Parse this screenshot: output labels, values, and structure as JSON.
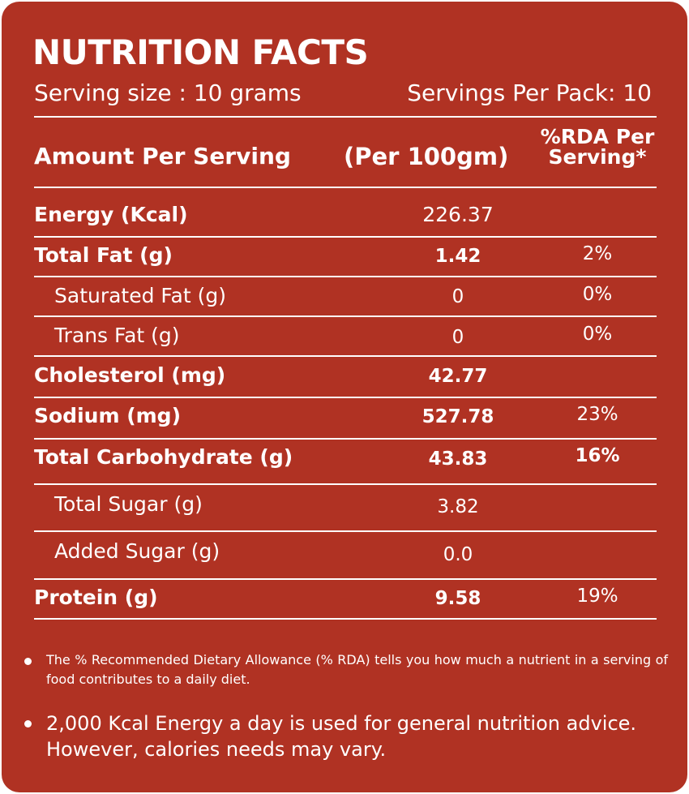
{
  "title": "NUTRITION FACTS",
  "serving_size": "Serving size : 10 grams",
  "servings_per_pack": "Servings Per Pack: 10",
  "headers": {
    "amount": "Amount Per Serving",
    "per100": "(Per 100gm)",
    "rda": "%RDA Per Serving*"
  },
  "rows": [
    {
      "label": "Energy (Kcal)",
      "value": "226.37",
      "rda": ""
    },
    {
      "label": "Total Fat (g)",
      "value": "1.42",
      "rda": "2%"
    },
    {
      "label": "Saturated Fat (g)",
      "value": "0",
      "rda": "0%"
    },
    {
      "label": "Trans Fat (g)",
      "value": "0",
      "rda": "0%"
    },
    {
      "label": "Cholesterol (mg)",
      "value": "42.77",
      "rda": ""
    },
    {
      "label": "Sodium  (mg)",
      "value": "527.78",
      "rda": "23%"
    },
    {
      "label": "Total Carbohydrate (g)",
      "value": "43.83",
      "rda": "16%"
    },
    {
      "label": "Total Sugar (g)",
      "value": "3.82",
      "rda": ""
    },
    {
      "label": "Added Sugar (g)",
      "value": "0.0",
      "rda": ""
    },
    {
      "label": "Protein (g)",
      "value": "9.58",
      "rda": "19%"
    }
  ],
  "notes": [
    "The % Recommended Dietary Allowance (% RDA) tells you how much a nutrient in a serving of food contributes to a daily diet.",
    "2,000 Kcal Energy a day is used for general nutrition advice. However, calories needs may vary."
  ],
  "colors": {
    "background": "#b03223",
    "text": "#ffffff"
  }
}
